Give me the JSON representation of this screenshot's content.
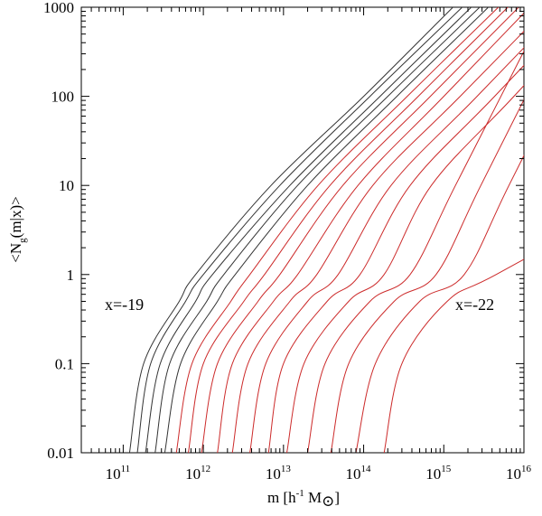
{
  "chart_data": {
    "type": "line",
    "xlabel": "m  [h-1 M⊙]",
    "ylabel": "<Ng(m|x)>",
    "x_scale": "log",
    "y_scale": "log",
    "xlim": [
      30000000000.0,
      1e+16
    ],
    "ylim": [
      0.01,
      1000
    ],
    "x_ticks": [
      {
        "base": "10",
        "exp": "11"
      },
      {
        "base": "10",
        "exp": "12"
      },
      {
        "base": "10",
        "exp": "13"
      },
      {
        "base": "10",
        "exp": "14"
      },
      {
        "base": "10",
        "exp": "15"
      },
      {
        "base": "10",
        "exp": "16"
      }
    ],
    "y_ticks": [
      "0.01",
      "0.1",
      "1",
      "10",
      "100",
      "1000"
    ],
    "annotations": [
      "x=-19",
      "x=-22"
    ],
    "grid": false,
    "legend": "none",
    "series_colors": {
      "dark": "#333333",
      "red": "#cc2a2a"
    },
    "series": [
      {
        "color_key": "dark",
        "x_at_0.01": 120000000000.0,
        "x_at_0.1": 180000000000.0,
        "plateau_x": 500000000000.0,
        "x_at_1": 800000000000.0,
        "x_at_10": 7000000000000.0,
        "x_at_100": 100000000000000.0,
        "x_at_1000": 1300000000000000.0
      },
      {
        "color_key": "dark",
        "x_at_0.01": 150000000000.0,
        "x_at_0.1": 220000000000.0,
        "plateau_x": 600000000000.0,
        "x_at_1": 1000000000000.0,
        "x_at_10": 9000000000000.0,
        "x_at_100": 120000000000000.0,
        "x_at_1000": 1700000000000000.0
      },
      {
        "color_key": "dark",
        "x_at_0.01": 190000000000.0,
        "x_at_0.1": 290000000000.0,
        "plateau_x": 800000000000.0,
        "x_at_1": 1300000000000.0,
        "x_at_10": 12000000000000.0,
        "x_at_100": 160000000000000.0,
        "x_at_1000": 2200000000000000.0
      },
      {
        "color_key": "dark",
        "x_at_0.01": 250000000000.0,
        "x_at_0.1": 380000000000.0,
        "plateau_x": 1100000000000.0,
        "x_at_1": 1800000000000.0,
        "x_at_10": 15000000000000.0,
        "x_at_100": 200000000000000.0,
        "x_at_1000": 2800000000000000.0
      },
      {
        "color_key": "dark",
        "x_at_0.01": 330000000000.0,
        "x_at_0.1": 520000000000.0,
        "plateau_x": 1500000000000.0,
        "x_at_1": 2500000000000.0,
        "x_at_10": 20000000000000.0,
        "x_at_100": 260000000000000.0,
        "x_at_1000": 3600000000000000.0
      },
      {
        "color_key": "red",
        "x_at_0.01": 460000000000.0,
        "x_at_0.1": 720000000000.0,
        "plateau_x": 2200000000000.0,
        "x_at_1": 3800000000000.0,
        "x_at_10": 27000000000000.0,
        "x_at_100": 350000000000000.0,
        "x_at_1000": 4800000000000000.0
      },
      {
        "color_key": "red",
        "x_at_0.01": 650000000000.0,
        "x_at_0.1": 1000000000000.0,
        "plateau_x": 3200000000000.0,
        "x_at_1": 5800000000000.0,
        "x_at_10": 38000000000000.0,
        "x_at_100": 480000000000000.0,
        "x_at_1000": 6300000000000000.0
      },
      {
        "color_key": "red",
        "x_at_0.01": 950000000000.0,
        "x_at_0.1": 1500000000000.0,
        "plateau_x": 4800000000000.0,
        "x_at_1": 9000000000000.0,
        "x_at_10": 55000000000000.0,
        "x_at_100": 680000000000000.0,
        "x_at_1000": 8600000000000000.0
      },
      {
        "color_key": "red",
        "x_at_0.01": 1500000000000.0,
        "x_at_0.1": 2300000000000.0,
        "plateau_x": 7500000000000.0,
        "x_at_1": 15000000000000.0,
        "x_at_10": 85000000000000.0,
        "x_at_100": 1000000000000000.0,
        "x_at_1000": null
      },
      {
        "color_key": "red",
        "x_at_0.01": 2300000000000.0,
        "x_at_0.1": 3600000000000.0,
        "plateau_x": 12000000000000.0,
        "x_at_1": 26000000000000.0,
        "x_at_10": 130000000000000.0,
        "x_at_100": 1600000000000000.0,
        "x_at_1000": null
      },
      {
        "color_key": "red",
        "x_at_0.01": 3800000000000.0,
        "x_at_0.1": 6000000000000.0,
        "plateau_x": 20000000000000.0,
        "x_at_1": 48000000000000.0,
        "x_at_10": 220000000000000.0,
        "x_at_100": 2600000000000000.0,
        "x_at_1000": null
      },
      {
        "color_key": "red",
        "x_at_0.01": 6500000000000.0,
        "x_at_0.1": 10000000000000.0,
        "plateau_x": 35000000000000.0,
        "x_at_1": 90000000000000.0,
        "x_at_10": 380000000000000.0,
        "x_at_100": 4300000000000000.0,
        "x_at_1000": null
      },
      {
        "color_key": "red",
        "x_at_0.01": 11000000000000.0,
        "x_at_0.1": 18000000000000.0,
        "plateau_x": 65000000000000.0,
        "x_at_1": 180000000000000.0,
        "x_at_10": 700000000000000.0,
        "x_at_100": 7500000000000000.0,
        "x_at_1000": null
      },
      {
        "color_key": "red",
        "x_at_0.01": 20000000000000.0,
        "x_at_0.1": 33000000000000.0,
        "plateau_x": 120000000000000.0,
        "x_at_1": 380000000000000.0,
        "x_at_10": 1400000000000000.0,
        "x_at_100": null,
        "x_at_1000": null
      },
      {
        "color_key": "red",
        "x_at_0.01": 39000000000000.0,
        "x_at_0.1": 65000000000000.0,
        "plateau_x": 240000000000000.0,
        "x_at_1": 800000000000000.0,
        "x_at_10": 2900000000000000.0,
        "x_at_100": null,
        "x_at_1000": null
      },
      {
        "color_key": "red",
        "x_at_0.01": 80000000000000.0,
        "x_at_0.1": 140000000000000.0,
        "plateau_x": 500000000000000.0,
        "x_at_1": 1800000000000000.0,
        "x_at_10": 6500000000000000.0,
        "x_at_100": null,
        "x_at_1000": null
      },
      {
        "color_key": "red",
        "x_at_0.01": 180000000000000.0,
        "x_at_0.1": 300000000000000.0,
        "plateau_x": 1100000000000000.0,
        "x_at_1": 4500000000000000.0,
        "x_at_10": null,
        "x_at_100": null,
        "x_at_1000": null
      }
    ]
  }
}
